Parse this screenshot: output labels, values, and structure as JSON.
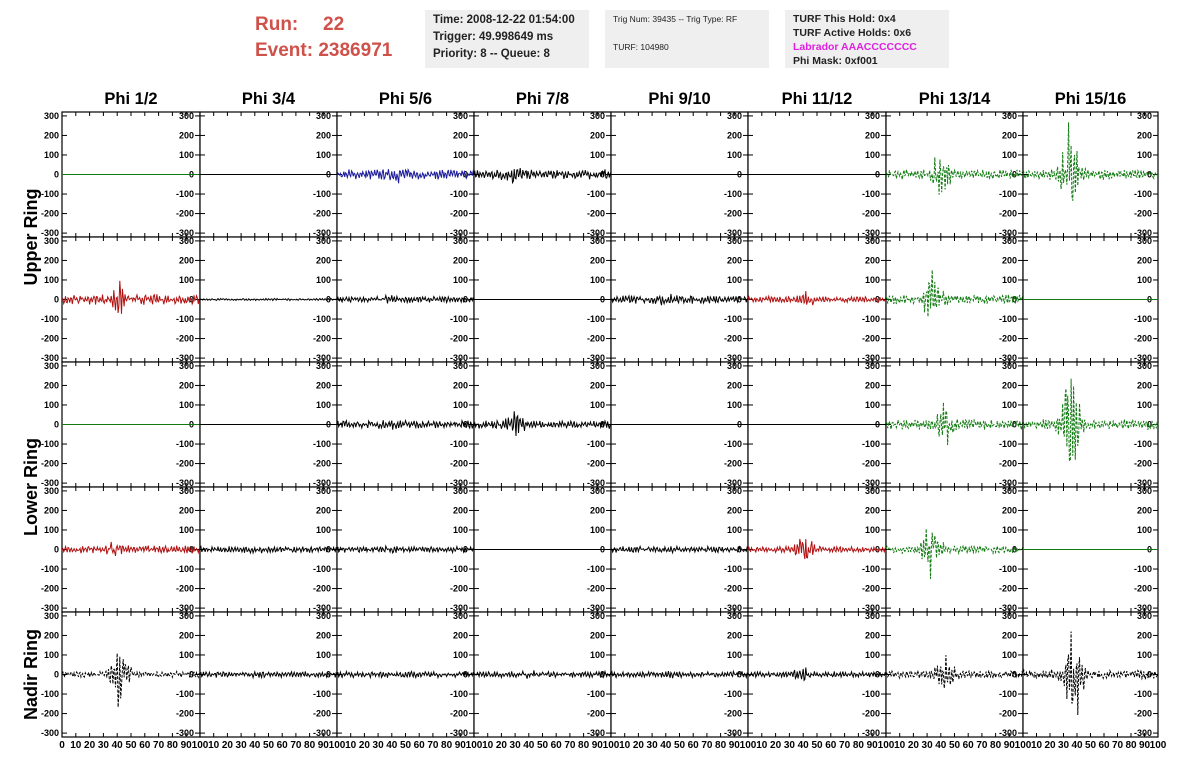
{
  "header": {
    "run_label": "Run:",
    "run_value": "22",
    "event_label": "Event:",
    "event_value": "2386971"
  },
  "info": {
    "time": "Time: 2008-12-22 01:54:00",
    "trigger": "Trigger: 49.998649 ms",
    "priority": "Priority: 8 -- Queue: 8",
    "trig_num": "Trig Num: 39435 -- Trig Type: RF",
    "turf": "TURF: 104980",
    "turf_hold": "TURF This Hold: 0x4",
    "turf_active": "TURF Active Holds: 0x6",
    "labrador": "Labrador AAACCCCCCC",
    "phi_mask": "Phi Mask: 0xf001"
  },
  "chart_data": {
    "type": "line",
    "columns": [
      "Phi 1/2",
      "Phi 3/4",
      "Phi 5/6",
      "Phi 7/8",
      "Phi 9/10",
      "Phi 11/12",
      "Phi 13/14",
      "Phi 15/16"
    ],
    "rows": [
      "Upper Ring",
      "Lower Ring",
      "Nadir Ring"
    ],
    "panel_rows": 5,
    "ylim": [
      -320,
      320
    ],
    "yticks": [
      300,
      200,
      100,
      0,
      -100,
      -200,
      -300
    ],
    "xlim": [
      0,
      100
    ],
    "xticks": [
      0,
      10,
      20,
      30,
      40,
      50,
      60,
      70,
      80,
      90,
      100
    ],
    "colors": {
      "black": "#000000",
      "red": "#b01010",
      "blue": "#1a1a9a",
      "green": "#107a10"
    },
    "panels": [
      [
        {
          "color": "green",
          "amp": 0,
          "peak": 0,
          "peak_at": 0,
          "dashed": false
        },
        {
          "color": "black",
          "amp": 0,
          "peak": 0,
          "peak_at": 0,
          "dashed": false
        },
        {
          "color": "blue",
          "amp": 25,
          "peak": 45,
          "peak_at": 45,
          "dashed": false
        },
        {
          "color": "black",
          "amp": 25,
          "peak": 55,
          "peak_at": 28,
          "dashed": false
        },
        {
          "color": "black",
          "amp": 0,
          "peak": 0,
          "peak_at": 0,
          "dashed": false
        },
        {
          "color": "black",
          "amp": 0,
          "peak": 0,
          "peak_at": 0,
          "dashed": false
        },
        {
          "color": "green",
          "amp": 25,
          "peak": 120,
          "peak_at": 40,
          "dashed": true
        },
        {
          "color": "green",
          "amp": 25,
          "peak": 290,
          "peak_at": 35,
          "dashed": true
        }
      ],
      [
        {
          "color": "red",
          "amp": 25,
          "peak": 90,
          "peak_at": 42,
          "dashed": false
        },
        {
          "color": "black",
          "amp": 5,
          "peak": 5,
          "peak_at": 50,
          "dashed": false
        },
        {
          "color": "black",
          "amp": 15,
          "peak": 25,
          "peak_at": 40,
          "dashed": false
        },
        {
          "color": "black",
          "amp": 0,
          "peak": 0,
          "peak_at": 0,
          "dashed": false
        },
        {
          "color": "black",
          "amp": 20,
          "peak": 35,
          "peak_at": 40,
          "dashed": false
        },
        {
          "color": "red",
          "amp": 15,
          "peak": 45,
          "peak_at": 42,
          "dashed": false
        },
        {
          "color": "green",
          "amp": 25,
          "peak": 160,
          "peak_at": 33,
          "dashed": true
        },
        {
          "color": "green",
          "amp": 0,
          "peak": 0,
          "peak_at": 0,
          "dashed": false
        }
      ],
      [
        {
          "color": "green",
          "amp": 0,
          "peak": 0,
          "peak_at": 0,
          "dashed": false
        },
        {
          "color": "black",
          "amp": 0,
          "peak": 0,
          "peak_at": 0,
          "dashed": false
        },
        {
          "color": "black",
          "amp": 20,
          "peak": 30,
          "peak_at": 40,
          "dashed": false
        },
        {
          "color": "black",
          "amp": 20,
          "peak": 70,
          "peak_at": 30,
          "dashed": false
        },
        {
          "color": "black",
          "amp": 0,
          "peak": 0,
          "peak_at": 0,
          "dashed": false
        },
        {
          "color": "black",
          "amp": 0,
          "peak": 0,
          "peak_at": 0,
          "dashed": false
        },
        {
          "color": "green",
          "amp": 25,
          "peak": 120,
          "peak_at": 43,
          "dashed": true
        },
        {
          "color": "green",
          "amp": 25,
          "peak": 300,
          "peak_at": 35,
          "dashed": true
        }
      ],
      [
        {
          "color": "red",
          "amp": 20,
          "peak": 60,
          "peak_at": 40,
          "dashed": false
        },
        {
          "color": "black",
          "amp": 15,
          "peak": 20,
          "peak_at": 40,
          "dashed": false
        },
        {
          "color": "black",
          "amp": 15,
          "peak": 20,
          "peak_at": 40,
          "dashed": false
        },
        {
          "color": "black",
          "amp": 0,
          "peak": 0,
          "peak_at": 0,
          "dashed": false
        },
        {
          "color": "black",
          "amp": 15,
          "peak": 20,
          "peak_at": 40,
          "dashed": false
        },
        {
          "color": "red",
          "amp": 15,
          "peak": 90,
          "peak_at": 42,
          "dashed": false
        },
        {
          "color": "green",
          "amp": 20,
          "peak": 160,
          "peak_at": 33,
          "dashed": true
        },
        {
          "color": "green",
          "amp": 0,
          "peak": 0,
          "peak_at": 0,
          "dashed": false
        }
      ],
      [
        {
          "color": "black",
          "amp": 15,
          "peak": 180,
          "peak_at": 42,
          "dashed": true
        },
        {
          "color": "black",
          "amp": 15,
          "peak": 20,
          "peak_at": 40,
          "dashed": false
        },
        {
          "color": "black",
          "amp": 15,
          "peak": 20,
          "peak_at": 40,
          "dashed": false
        },
        {
          "color": "black",
          "amp": 15,
          "peak": 25,
          "peak_at": 40,
          "dashed": false
        },
        {
          "color": "black",
          "amp": 15,
          "peak": 20,
          "peak_at": 40,
          "dashed": false
        },
        {
          "color": "black",
          "amp": 15,
          "peak": 40,
          "peak_at": 40,
          "dashed": false
        },
        {
          "color": "black",
          "amp": 20,
          "peak": 100,
          "peak_at": 43,
          "dashed": true
        },
        {
          "color": "black",
          "amp": 25,
          "peak": 290,
          "peak_at": 38,
          "dashed": true
        }
      ]
    ]
  }
}
